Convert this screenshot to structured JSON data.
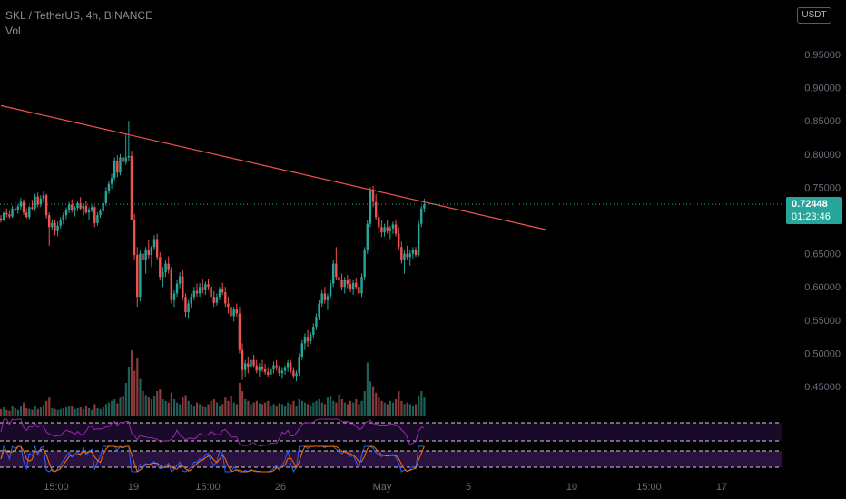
{
  "header": {
    "symbol_line": "SKL / TetherUS, 4h, BINANCE",
    "volume_label": "Vol"
  },
  "currency_button": "USDT",
  "last_price": {
    "value": "0.72448",
    "countdown": "01:23:46"
  },
  "colors": {
    "up": "#26a69a",
    "down": "#ef5350",
    "trendline": "#ef5350",
    "rsi": "#9c27b0",
    "stoch_k": "#2962ff",
    "stoch_d": "#ff6d00",
    "panel_band": "#2a1240"
  },
  "chart_data": {
    "type": "candlestick",
    "y_axis_ticks": [
      "0.95000",
      "0.90000",
      "0.85000",
      "0.80000",
      "0.75000",
      "0.65000",
      "0.60000",
      "0.55000",
      "0.50000",
      "0.45000"
    ],
    "x_axis_ticks": [
      "15:00",
      "19",
      "15:00",
      "26",
      "May",
      "5",
      "10",
      "15:00",
      "17"
    ],
    "ylim": [
      0.43,
      0.98
    ],
    "last_price": 0.72448,
    "trendline": {
      "start_index": 0,
      "start_price": 0.873,
      "end_index": 192,
      "end_price": 0.686
    },
    "candles": [
      [
        0.703,
        0.708,
        0.697,
        0.701
      ],
      [
        0.701,
        0.713,
        0.699,
        0.711
      ],
      [
        0.711,
        0.718,
        0.705,
        0.709
      ],
      [
        0.709,
        0.714,
        0.703,
        0.706
      ],
      [
        0.706,
        0.722,
        0.704,
        0.718
      ],
      [
        0.718,
        0.73,
        0.712,
        0.716
      ],
      [
        0.716,
        0.724,
        0.71,
        0.721
      ],
      [
        0.721,
        0.734,
        0.716,
        0.728
      ],
      [
        0.728,
        0.732,
        0.708,
        0.712
      ],
      [
        0.712,
        0.718,
        0.703,
        0.705
      ],
      [
        0.705,
        0.722,
        0.702,
        0.72
      ],
      [
        0.72,
        0.731,
        0.715,
        0.718
      ],
      [
        0.718,
        0.74,
        0.714,
        0.736
      ],
      [
        0.736,
        0.742,
        0.72,
        0.724
      ],
      [
        0.724,
        0.738,
        0.72,
        0.733
      ],
      [
        0.733,
        0.745,
        0.727,
        0.738
      ],
      [
        0.738,
        0.74,
        0.703,
        0.708
      ],
      [
        0.708,
        0.712,
        0.662,
        0.69
      ],
      [
        0.69,
        0.702,
        0.686,
        0.696
      ],
      [
        0.696,
        0.7,
        0.678,
        0.684
      ],
      [
        0.684,
        0.698,
        0.676,
        0.692
      ],
      [
        0.692,
        0.705,
        0.688,
        0.7
      ],
      [
        0.7,
        0.712,
        0.694,
        0.708
      ],
      [
        0.708,
        0.72,
        0.702,
        0.716
      ],
      [
        0.716,
        0.728,
        0.711,
        0.724
      ],
      [
        0.724,
        0.732,
        0.712,
        0.715
      ],
      [
        0.715,
        0.722,
        0.706,
        0.719
      ],
      [
        0.719,
        0.73,
        0.714,
        0.726
      ],
      [
        0.726,
        0.735,
        0.716,
        0.718
      ],
      [
        0.718,
        0.726,
        0.708,
        0.722
      ],
      [
        0.722,
        0.73,
        0.71,
        0.712
      ],
      [
        0.712,
        0.72,
        0.7,
        0.716
      ],
      [
        0.716,
        0.724,
        0.712,
        0.72
      ],
      [
        0.72,
        0.722,
        0.69,
        0.696
      ],
      [
        0.696,
        0.712,
        0.692,
        0.708
      ],
      [
        0.708,
        0.718,
        0.704,
        0.714
      ],
      [
        0.714,
        0.73,
        0.71,
        0.726
      ],
      [
        0.726,
        0.75,
        0.722,
        0.745
      ],
      [
        0.745,
        0.76,
        0.74,
        0.755
      ],
      [
        0.755,
        0.77,
        0.748,
        0.764
      ],
      [
        0.764,
        0.795,
        0.76,
        0.79
      ],
      [
        0.79,
        0.798,
        0.765,
        0.772
      ],
      [
        0.772,
        0.8,
        0.768,
        0.795
      ],
      [
        0.795,
        0.81,
        0.782,
        0.788
      ],
      [
        0.788,
        0.83,
        0.784,
        0.795
      ],
      [
        0.795,
        0.85,
        0.79,
        0.797
      ],
      [
        0.797,
        0.805,
        0.7,
        0.7
      ],
      [
        0.7,
        0.71,
        0.64,
        0.648
      ],
      [
        0.648,
        0.66,
        0.57,
        0.585
      ],
      [
        0.585,
        0.655,
        0.578,
        0.65
      ],
      [
        0.65,
        0.668,
        0.635,
        0.64
      ],
      [
        0.64,
        0.66,
        0.62,
        0.655
      ],
      [
        0.655,
        0.67,
        0.642,
        0.648
      ],
      [
        0.648,
        0.662,
        0.63,
        0.66
      ],
      [
        0.66,
        0.678,
        0.655,
        0.672
      ],
      [
        0.672,
        0.68,
        0.64,
        0.645
      ],
      [
        0.645,
        0.652,
        0.61,
        0.615
      ],
      [
        0.615,
        0.63,
        0.6,
        0.622
      ],
      [
        0.622,
        0.64,
        0.615,
        0.635
      ],
      [
        0.635,
        0.646,
        0.62,
        0.625
      ],
      [
        0.625,
        0.63,
        0.575,
        0.58
      ],
      [
        0.58,
        0.595,
        0.57,
        0.59
      ],
      [
        0.59,
        0.61,
        0.585,
        0.605
      ],
      [
        0.605,
        0.622,
        0.598,
        0.616
      ],
      [
        0.616,
        0.625,
        0.58,
        0.585
      ],
      [
        0.585,
        0.59,
        0.555,
        0.562
      ],
      [
        0.562,
        0.58,
        0.552,
        0.575
      ],
      [
        0.575,
        0.59,
        0.568,
        0.585
      ],
      [
        0.585,
        0.6,
        0.58,
        0.594
      ],
      [
        0.594,
        0.605,
        0.585,
        0.59
      ],
      [
        0.59,
        0.606,
        0.585,
        0.6
      ],
      [
        0.6,
        0.612,
        0.59,
        0.595
      ],
      [
        0.595,
        0.608,
        0.588,
        0.604
      ],
      [
        0.604,
        0.612,
        0.595,
        0.6
      ],
      [
        0.6,
        0.61,
        0.58,
        0.585
      ],
      [
        0.585,
        0.594,
        0.57,
        0.576
      ],
      [
        0.576,
        0.59,
        0.572,
        0.585
      ],
      [
        0.585,
        0.6,
        0.58,
        0.596
      ],
      [
        0.596,
        0.606,
        0.588,
        0.592
      ],
      [
        0.592,
        0.6,
        0.57,
        0.575
      ],
      [
        0.575,
        0.585,
        0.56,
        0.57
      ],
      [
        0.57,
        0.58,
        0.55,
        0.556
      ],
      [
        0.556,
        0.57,
        0.548,
        0.566
      ],
      [
        0.566,
        0.575,
        0.555,
        0.56
      ],
      [
        0.56,
        0.57,
        0.5,
        0.505
      ],
      [
        0.505,
        0.515,
        0.46,
        0.475
      ],
      [
        0.475,
        0.49,
        0.465,
        0.485
      ],
      [
        0.485,
        0.495,
        0.47,
        0.48
      ],
      [
        0.48,
        0.495,
        0.472,
        0.49
      ],
      [
        0.49,
        0.498,
        0.478,
        0.482
      ],
      [
        0.482,
        0.49,
        0.47,
        0.474
      ],
      [
        0.474,
        0.485,
        0.465,
        0.48
      ],
      [
        0.48,
        0.49,
        0.472,
        0.476
      ],
      [
        0.476,
        0.484,
        0.468,
        0.472
      ],
      [
        0.472,
        0.478,
        0.465,
        0.468
      ],
      [
        0.468,
        0.48,
        0.462,
        0.476
      ],
      [
        0.476,
        0.488,
        0.47,
        0.482
      ],
      [
        0.482,
        0.49,
        0.474,
        0.478
      ],
      [
        0.478,
        0.482,
        0.466,
        0.47
      ],
      [
        0.47,
        0.478,
        0.462,
        0.474
      ],
      [
        0.474,
        0.482,
        0.468,
        0.478
      ],
      [
        0.478,
        0.49,
        0.472,
        0.486
      ],
      [
        0.486,
        0.49,
        0.47,
        0.474
      ],
      [
        0.474,
        0.478,
        0.462,
        0.466
      ],
      [
        0.466,
        0.474,
        0.458,
        0.47
      ],
      [
        0.47,
        0.5,
        0.466,
        0.495
      ],
      [
        0.495,
        0.52,
        0.49,
        0.515
      ],
      [
        0.515,
        0.53,
        0.505,
        0.525
      ],
      [
        0.525,
        0.535,
        0.51,
        0.518
      ],
      [
        0.518,
        0.532,
        0.514,
        0.528
      ],
      [
        0.528,
        0.545,
        0.522,
        0.54
      ],
      [
        0.54,
        0.56,
        0.535,
        0.555
      ],
      [
        0.555,
        0.58,
        0.55,
        0.575
      ],
      [
        0.575,
        0.595,
        0.57,
        0.59
      ],
      [
        0.59,
        0.6,
        0.575,
        0.58
      ],
      [
        0.58,
        0.59,
        0.565,
        0.586
      ],
      [
        0.586,
        0.61,
        0.582,
        0.605
      ],
      [
        0.605,
        0.64,
        0.6,
        0.635
      ],
      [
        0.635,
        0.66,
        0.61,
        0.615
      ],
      [
        0.615,
        0.625,
        0.6,
        0.61
      ],
      [
        0.61,
        0.62,
        0.595,
        0.6
      ],
      [
        0.6,
        0.615,
        0.59,
        0.61
      ],
      [
        0.61,
        0.618,
        0.598,
        0.604
      ],
      [
        0.604,
        0.612,
        0.592,
        0.596
      ],
      [
        0.596,
        0.61,
        0.588,
        0.606
      ],
      [
        0.606,
        0.614,
        0.596,
        0.6
      ],
      [
        0.6,
        0.608,
        0.585,
        0.59
      ],
      [
        0.59,
        0.62,
        0.585,
        0.615
      ],
      [
        0.615,
        0.66,
        0.61,
        0.655
      ],
      [
        0.655,
        0.7,
        0.65,
        0.695
      ],
      [
        0.695,
        0.75,
        0.69,
        0.745
      ],
      [
        0.745,
        0.752,
        0.72,
        0.728
      ],
      [
        0.728,
        0.74,
        0.7,
        0.705
      ],
      [
        0.705,
        0.712,
        0.68,
        0.69
      ],
      [
        0.69,
        0.7,
        0.675,
        0.682
      ],
      [
        0.682,
        0.695,
        0.676,
        0.69
      ],
      [
        0.69,
        0.7,
        0.68,
        0.684
      ],
      [
        0.684,
        0.692,
        0.672,
        0.688
      ],
      [
        0.688,
        0.698,
        0.68,
        0.694
      ],
      [
        0.694,
        0.7,
        0.676,
        0.68
      ],
      [
        0.68,
        0.69,
        0.655,
        0.66
      ],
      [
        0.66,
        0.668,
        0.635,
        0.64
      ],
      [
        0.64,
        0.655,
        0.62,
        0.65
      ],
      [
        0.65,
        0.662,
        0.64,
        0.645
      ],
      [
        0.645,
        0.655,
        0.632,
        0.65
      ],
      [
        0.65,
        0.66,
        0.643,
        0.655
      ],
      [
        0.655,
        0.66,
        0.645,
        0.648
      ],
      [
        0.648,
        0.7,
        0.645,
        0.695
      ],
      [
        0.695,
        0.722,
        0.69,
        0.718
      ],
      [
        0.718,
        0.733,
        0.712,
        0.724
      ]
    ],
    "volumes": [
      8,
      10,
      7,
      6,
      12,
      9,
      7,
      11,
      16,
      9,
      8,
      7,
      12,
      8,
      10,
      13,
      18,
      22,
      9,
      8,
      7,
      8,
      9,
      10,
      12,
      11,
      8,
      9,
      10,
      8,
      12,
      9,
      7,
      14,
      9,
      8,
      10,
      14,
      16,
      18,
      20,
      15,
      22,
      24,
      40,
      60,
      80,
      55,
      70,
      45,
      30,
      25,
      22,
      20,
      24,
      30,
      32,
      20,
      18,
      16,
      28,
      20,
      16,
      14,
      22,
      25,
      18,
      14,
      12,
      16,
      14,
      12,
      10,
      14,
      18,
      20,
      16,
      12,
      14,
      22,
      18,
      24,
      16,
      14,
      40,
      30,
      20,
      18,
      14,
      16,
      18,
      15,
      14,
      16,
      18,
      12,
      14,
      12,
      15,
      14,
      12,
      16,
      14,
      18,
      12,
      20,
      18,
      16,
      14,
      12,
      16,
      18,
      20,
      16,
      14,
      22,
      24,
      18,
      16,
      26,
      20,
      16,
      14,
      18,
      16,
      20,
      14,
      18,
      30,
      65,
      42,
      35,
      28,
      22,
      18,
      16,
      14,
      18,
      16,
      20,
      30,
      18,
      14,
      16,
      14,
      12,
      14,
      24,
      30,
      22
    ]
  }
}
